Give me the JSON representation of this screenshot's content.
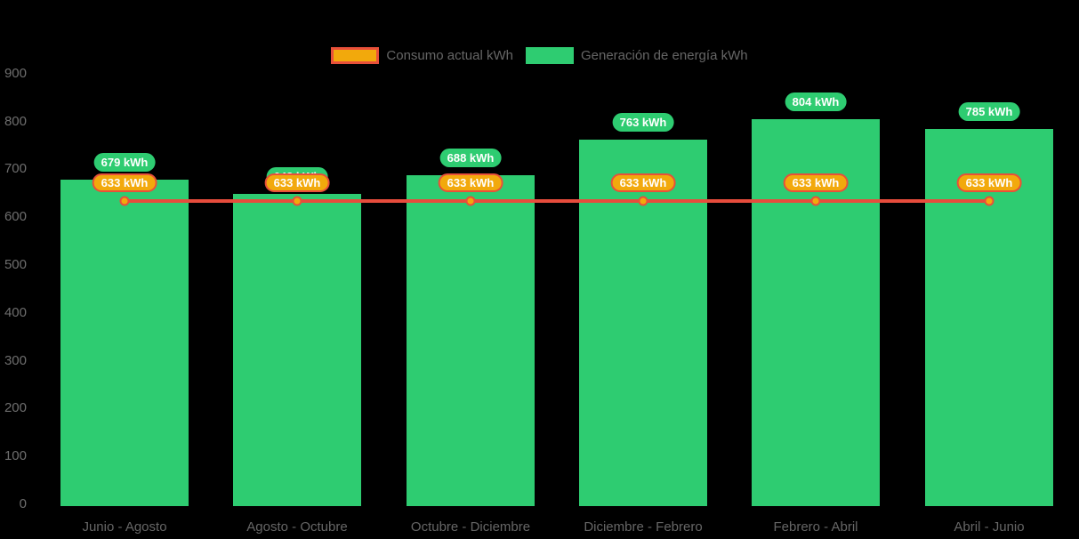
{
  "legend": {
    "items": [
      {
        "id": "consumo",
        "label": "Consumo actual kWh"
      },
      {
        "id": "generacion",
        "label": "Generación de energía kWh"
      }
    ]
  },
  "colors": {
    "generation_green": "#2ecc71",
    "consumption_line_red": "#e74c3c",
    "consumption_fill_gold": "#f2a90c",
    "consumption_border_red": "#e8503a",
    "badge_text": "#ffffff",
    "axis_text": "#666666",
    "background": "#000000"
  },
  "chart_data": {
    "type": "bar",
    "title": "",
    "xlabel": "",
    "ylabel": "",
    "categories": [
      "Junio - Agosto",
      "Agosto - Octubre",
      "Octubre - Diciembre",
      "Diciembre - Febrero",
      "Febrero - Abril",
      "Abril - Junio"
    ],
    "series": [
      {
        "name": "Generación de energía kWh",
        "type": "bar",
        "color": "#2ecc71",
        "values": [
          679,
          648,
          688,
          763,
          804,
          785
        ],
        "data_labels": [
          "679 kWh",
          "648 kWh",
          "688 kWh",
          "763 kWh",
          "804 kWh",
          "785 kWh"
        ]
      },
      {
        "name": "Consumo actual kWh",
        "type": "line",
        "color": "#e74c3c",
        "point_color": "#f2a90c",
        "values": [
          633,
          633,
          633,
          633,
          633,
          633
        ],
        "data_labels": [
          "633 kWh",
          "633 kWh",
          "633 kWh",
          "633 kWh",
          "633 kWh",
          "633 kWh"
        ]
      }
    ],
    "ylim": [
      0,
      900
    ],
    "ytick_labels": [
      "0",
      "100",
      "200",
      "300",
      "400",
      "500",
      "600",
      "700",
      "800",
      "900"
    ],
    "grid": false,
    "legend_position": "top"
  }
}
